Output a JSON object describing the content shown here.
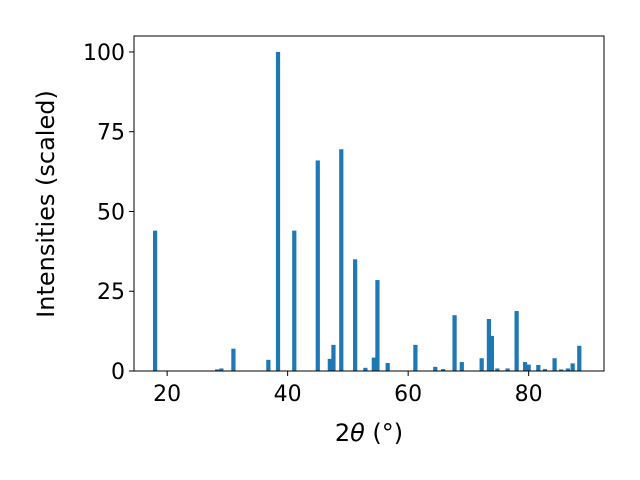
{
  "chart_data": {
    "type": "bar",
    "xlabel_prefix": "2",
    "xlabel_symbol": "θ",
    "xlabel_suffix": " (°)",
    "ylabel": "Intensities (scaled)",
    "xlim": [
      14.5,
      92.5
    ],
    "ylim": [
      0,
      105
    ],
    "xticks": [
      20,
      40,
      60,
      80
    ],
    "yticks": [
      0,
      25,
      50,
      75,
      100
    ],
    "grid": false,
    "bar_color": "#1f77b4",
    "bar_width_deg": 0.7,
    "x": [
      18.0,
      28.3,
      29.0,
      31.0,
      36.8,
      38.4,
      41.1,
      45.0,
      47.0,
      47.6,
      48.9,
      51.2,
      52.9,
      54.3,
      54.9,
      56.6,
      61.2,
      64.5,
      65.8,
      67.7,
      68.9,
      72.2,
      73.4,
      73.9,
      74.8,
      76.5,
      78.0,
      79.4,
      80.0,
      81.6,
      82.7,
      84.3,
      85.4,
      86.5,
      87.3,
      88.4
    ],
    "values": [
      44,
      0.5,
      0.8,
      7,
      3.5,
      100,
      44,
      66,
      3.8,
      8.2,
      69.5,
      35,
      1,
      4.2,
      28.5,
      2.5,
      8.2,
      1.3,
      0.6,
      17.5,
      2.8,
      4,
      16.3,
      11,
      0.8,
      0.8,
      18.8,
      2.8,
      2,
      1.9,
      0.6,
      4,
      0.5,
      0.8,
      2.4,
      7.9
    ]
  }
}
